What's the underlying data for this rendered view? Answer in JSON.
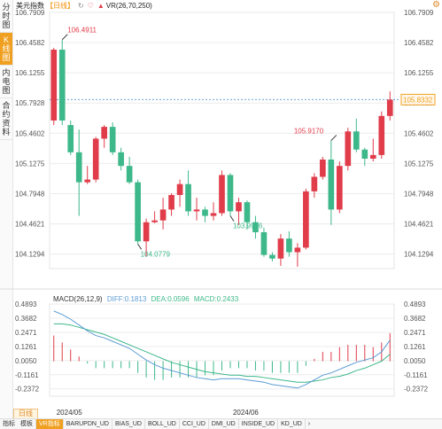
{
  "sidebar": {
    "items": [
      {
        "label": "分时图",
        "active": false
      },
      {
        "label": "K线图",
        "active": true
      },
      {
        "label": "内电图",
        "active": false
      },
      {
        "label": "合约资料",
        "active": false
      }
    ]
  },
  "header": {
    "symbol": "美元指数",
    "period": "【日线】",
    "icons": [
      {
        "name": "refresh-icon",
        "glyph": "↻"
      },
      {
        "name": "heart-icon",
        "glyph": "♡"
      },
      {
        "name": "triangle-icon",
        "glyph": "▲"
      }
    ],
    "vr_label": "VR(26,70,250)"
  },
  "macd_header": {
    "title": "MACD(26,12,9)",
    "diff": "DIFF:0.1813",
    "dea": "DEA:0.0596",
    "macd": "MACD:0.2433"
  },
  "colors": {
    "up": "#e03c4a",
    "down": "#3db88a",
    "diff": "#5b9bd5",
    "dea": "#3db88a",
    "accent": "#f0a020",
    "grid": "#ececec",
    "text": "#555555"
  },
  "period_chip": "日线",
  "bottom_tabs": [
    {
      "label": "指标",
      "active": false
    },
    {
      "label": "模板",
      "active": false
    }
  ],
  "bottom_indicators": [
    {
      "label": "VR指标",
      "active": true
    },
    {
      "label": "BARUPDN_UD",
      "active": false
    },
    {
      "label": "BIAS_UD",
      "active": false
    },
    {
      "label": "BOLL_UD",
      "active": false
    },
    {
      "label": "CCI_UD",
      "active": false
    },
    {
      "label": "DMI_UD",
      "active": false
    },
    {
      "label": "INSIDE_UD",
      "active": false
    },
    {
      "label": "KD_UD",
      "active": false
    },
    {
      "label": "›",
      "active": false
    }
  ],
  "chart_data": {
    "type": "candlestick",
    "price_ticks": [
      "106.7909",
      "106.4582",
      "106.1255",
      "105.7928",
      "105.4602",
      "105.1275",
      "104.7948",
      "104.4621",
      "104.1294"
    ],
    "price_range": [
      103.97,
      106.79
    ],
    "last_price_badge": "105.8332",
    "annotations": [
      {
        "text": "106.4911",
        "kind": "high",
        "candle": 1,
        "color": "up"
      },
      {
        "text": "104.0779",
        "kind": "low",
        "candle": 10,
        "color": "down"
      },
      {
        "text": "103.9926",
        "kind": "low",
        "candle": 21,
        "color": "down"
      },
      {
        "text": "105.9170",
        "kind": "high",
        "candle": 33,
        "color": "up"
      }
    ],
    "dashed_level": 105.83,
    "x_labels": [
      {
        "text": "2024/05",
        "candle": 2
      },
      {
        "text": "2024/06",
        "candle": 23
      }
    ],
    "candles": [
      {
        "o": 105.6,
        "h": 106.4,
        "l": 105.55,
        "c": 106.38
      },
      {
        "o": 106.38,
        "h": 106.49,
        "l": 105.55,
        "c": 105.6
      },
      {
        "o": 105.55,
        "h": 105.6,
        "l": 105.22,
        "c": 105.25
      },
      {
        "o": 105.25,
        "h": 105.5,
        "l": 104.55,
        "c": 104.92
      },
      {
        "o": 104.92,
        "h": 105.1,
        "l": 104.9,
        "c": 104.95
      },
      {
        "o": 104.95,
        "h": 105.42,
        "l": 104.92,
        "c": 105.4
      },
      {
        "o": 105.4,
        "h": 105.55,
        "l": 105.3,
        "c": 105.53
      },
      {
        "o": 105.53,
        "h": 105.58,
        "l": 105.22,
        "c": 105.25
      },
      {
        "o": 105.25,
        "h": 105.3,
        "l": 105.05,
        "c": 105.1
      },
      {
        "o": 105.1,
        "h": 105.2,
        "l": 104.9,
        "c": 104.92
      },
      {
        "o": 104.92,
        "h": 104.95,
        "l": 104.24,
        "c": 104.27
      },
      {
        "o": 104.27,
        "h": 104.52,
        "l": 104.1,
        "c": 104.48
      },
      {
        "o": 104.48,
        "h": 104.6,
        "l": 104.47,
        "c": 104.5
      },
      {
        "o": 104.5,
        "h": 104.75,
        "l": 104.4,
        "c": 104.62
      },
      {
        "o": 104.62,
        "h": 104.8,
        "l": 104.55,
        "c": 104.78
      },
      {
        "o": 104.78,
        "h": 104.95,
        "l": 104.65,
        "c": 104.9
      },
      {
        "o": 104.9,
        "h": 105.05,
        "l": 104.55,
        "c": 104.6
      },
      {
        "o": 104.6,
        "h": 104.75,
        "l": 104.5,
        "c": 104.62
      },
      {
        "o": 104.62,
        "h": 104.65,
        "l": 104.48,
        "c": 104.55
      },
      {
        "o": 104.55,
        "h": 104.7,
        "l": 104.5,
        "c": 104.58
      },
      {
        "o": 104.58,
        "h": 105.05,
        "l": 104.55,
        "c": 105.0
      },
      {
        "o": 105.0,
        "h": 105.02,
        "l": 104.55,
        "c": 104.6
      },
      {
        "o": 104.6,
        "h": 104.75,
        "l": 104.45,
        "c": 104.7
      },
      {
        "o": 104.7,
        "h": 104.72,
        "l": 104.4,
        "c": 104.48
      },
      {
        "o": 104.48,
        "h": 104.55,
        "l": 104.3,
        "c": 104.37
      },
      {
        "o": 104.37,
        "h": 104.42,
        "l": 104.1,
        "c": 104.12
      },
      {
        "o": 104.12,
        "h": 104.15,
        "l": 104.05,
        "c": 104.08
      },
      {
        "o": 104.08,
        "h": 104.35,
        "l": 104.0,
        "c": 104.3
      },
      {
        "o": 104.3,
        "h": 104.38,
        "l": 104.1,
        "c": 104.15
      },
      {
        "o": 104.15,
        "h": 104.25,
        "l": 103.99,
        "c": 104.2
      },
      {
        "o": 104.2,
        "h": 104.85,
        "l": 104.18,
        "c": 104.82
      },
      {
        "o": 104.82,
        "h": 105.02,
        "l": 104.75,
        "c": 104.98
      },
      {
        "o": 104.98,
        "h": 105.2,
        "l": 104.95,
        "c": 105.17
      },
      {
        "o": 105.17,
        "h": 105.38,
        "l": 104.45,
        "c": 104.62
      },
      {
        "o": 104.62,
        "h": 105.15,
        "l": 104.58,
        "c": 105.1
      },
      {
        "o": 105.1,
        "h": 105.52,
        "l": 105.05,
        "c": 105.48
      },
      {
        "o": 105.48,
        "h": 105.62,
        "l": 105.25,
        "c": 105.28
      },
      {
        "o": 105.28,
        "h": 105.3,
        "l": 105.1,
        "c": 105.18
      },
      {
        "o": 105.18,
        "h": 105.4,
        "l": 105.15,
        "c": 105.22
      },
      {
        "o": 105.22,
        "h": 105.7,
        "l": 105.18,
        "c": 105.65
      },
      {
        "o": 105.65,
        "h": 105.92,
        "l": 105.6,
        "c": 105.83
      }
    ],
    "macd_ticks": [
      "0.4893",
      "0.3682",
      "0.2471",
      "0.1261",
      "0.0050",
      "-0.1161",
      "-0.2372"
    ],
    "macd_range": [
      -0.3,
      0.49
    ],
    "diff": [
      0.43,
      0.4,
      0.36,
      0.31,
      0.26,
      0.22,
      0.2,
      0.17,
      0.14,
      0.11,
      0.06,
      0.01,
      -0.03,
      -0.06,
      -0.08,
      -0.1,
      -0.12,
      -0.14,
      -0.15,
      -0.16,
      -0.15,
      -0.15,
      -0.15,
      -0.16,
      -0.17,
      -0.18,
      -0.2,
      -0.21,
      -0.22,
      -0.23,
      -0.2,
      -0.16,
      -0.12,
      -0.1,
      -0.07,
      -0.04,
      -0.01,
      0.01,
      0.03,
      0.08,
      0.18
    ],
    "dea": [
      0.32,
      0.32,
      0.31,
      0.29,
      0.27,
      0.25,
      0.23,
      0.2,
      0.17,
      0.14,
      0.11,
      0.08,
      0.05,
      0.02,
      -0.01,
      -0.03,
      -0.05,
      -0.07,
      -0.09,
      -0.1,
      -0.11,
      -0.12,
      -0.12,
      -0.13,
      -0.13,
      -0.14,
      -0.15,
      -0.16,
      -0.17,
      -0.18,
      -0.18,
      -0.17,
      -0.16,
      -0.14,
      -0.13,
      -0.11,
      -0.08,
      -0.06,
      -0.03,
      0.0,
      0.06
    ],
    "macd_hist": [
      0.22,
      0.16,
      0.1,
      0.04,
      -0.02,
      -0.06,
      -0.06,
      -0.06,
      -0.06,
      -0.06,
      -0.1,
      -0.14,
      -0.16,
      -0.16,
      -0.14,
      -0.14,
      -0.14,
      -0.14,
      -0.12,
      -0.12,
      -0.08,
      -0.06,
      -0.06,
      -0.06,
      -0.08,
      -0.08,
      -0.1,
      -0.1,
      -0.1,
      -0.1,
      -0.04,
      0.02,
      0.08,
      0.08,
      0.12,
      0.14,
      0.14,
      0.14,
      0.12,
      0.16,
      0.24
    ]
  }
}
